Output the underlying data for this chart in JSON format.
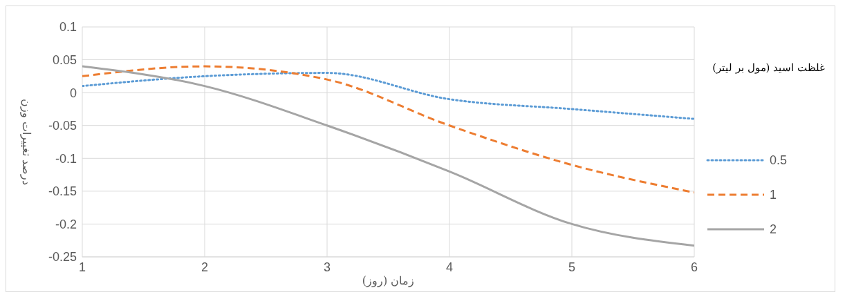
{
  "chart_data": {
    "type": "line",
    "xlabel": "زمان (روز)",
    "ylabel": "درصد تغییرات وزن",
    "legend_title": "غلظت اسید (مول بر لیتر)",
    "x": [
      1,
      2,
      3,
      4,
      5,
      6
    ],
    "xlim": [
      1,
      6
    ],
    "xticks": [
      1,
      2,
      3,
      4,
      5,
      6
    ],
    "ylim": [
      -0.25,
      0.1
    ],
    "yticks": [
      -0.25,
      -0.2,
      -0.15,
      -0.1,
      -0.05,
      0,
      0.05,
      0.1
    ],
    "grid": true,
    "legend": "right",
    "marker": "none",
    "series": [
      {
        "name": "0.5",
        "color": "#5b9bd5",
        "line_style": "dotted",
        "values": [
          0.01,
          0.025,
          0.03,
          -0.01,
          -0.025,
          -0.04
        ]
      },
      {
        "name": "1",
        "color": "#ed7d31",
        "line_style": "dashed",
        "values": [
          0.025,
          0.04,
          0.02,
          -0.05,
          -0.11,
          -0.152
        ]
      },
      {
        "name": "2",
        "color": "#a5a5a5",
        "line_style": "solid",
        "values": [
          0.04,
          0.01,
          -0.05,
          -0.12,
          -0.2,
          -0.233
        ]
      }
    ]
  }
}
